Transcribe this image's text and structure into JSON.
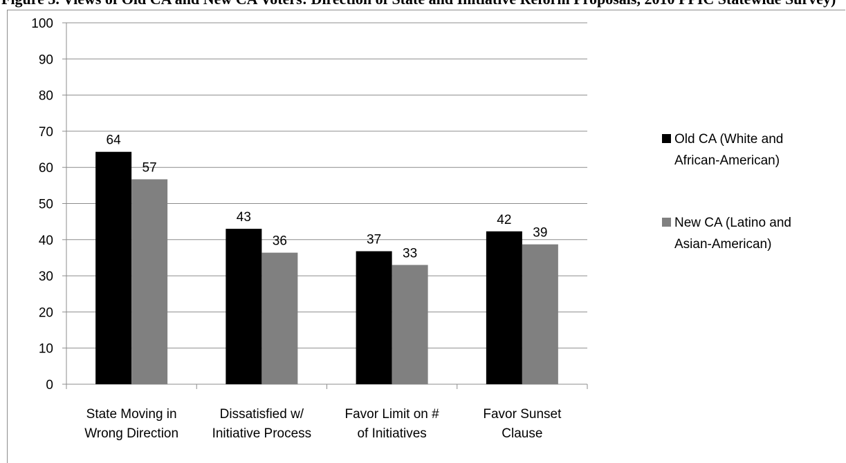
{
  "caption": "Figure 3. Views of Old CA and New CA Voters: Direction of State and Initiative Reform Proposals, 2010 PPIC Statewide Survey)",
  "chart_data": {
    "type": "bar",
    "title": "",
    "xlabel": "",
    "ylabel": "",
    "ylim": [
      0,
      100
    ],
    "yticks": [
      0,
      10,
      20,
      30,
      40,
      50,
      60,
      70,
      80,
      90,
      100
    ],
    "grid": true,
    "legend_position": "right",
    "categories": [
      [
        "State Moving in",
        "Wrong Direction"
      ],
      [
        "Dissatisfied w/",
        "Initiative Process"
      ],
      [
        "Favor Limit on #",
        "of Initiatives"
      ],
      [
        "Favor Sunset",
        "Clause"
      ]
    ],
    "series": [
      {
        "name_lines": [
          "Old CA (White and",
          "African-American)"
        ],
        "color": "#000000",
        "values": [
          64.3,
          43.0,
          36.8,
          42.3
        ],
        "labels": [
          "64",
          "43",
          "37",
          "42"
        ]
      },
      {
        "name_lines": [
          "New CA (Latino and",
          "Asian-American)"
        ],
        "color": "#808080",
        "values": [
          56.7,
          36.4,
          33.0,
          38.7
        ],
        "labels": [
          "57",
          "36",
          "33",
          "39"
        ]
      }
    ]
  }
}
